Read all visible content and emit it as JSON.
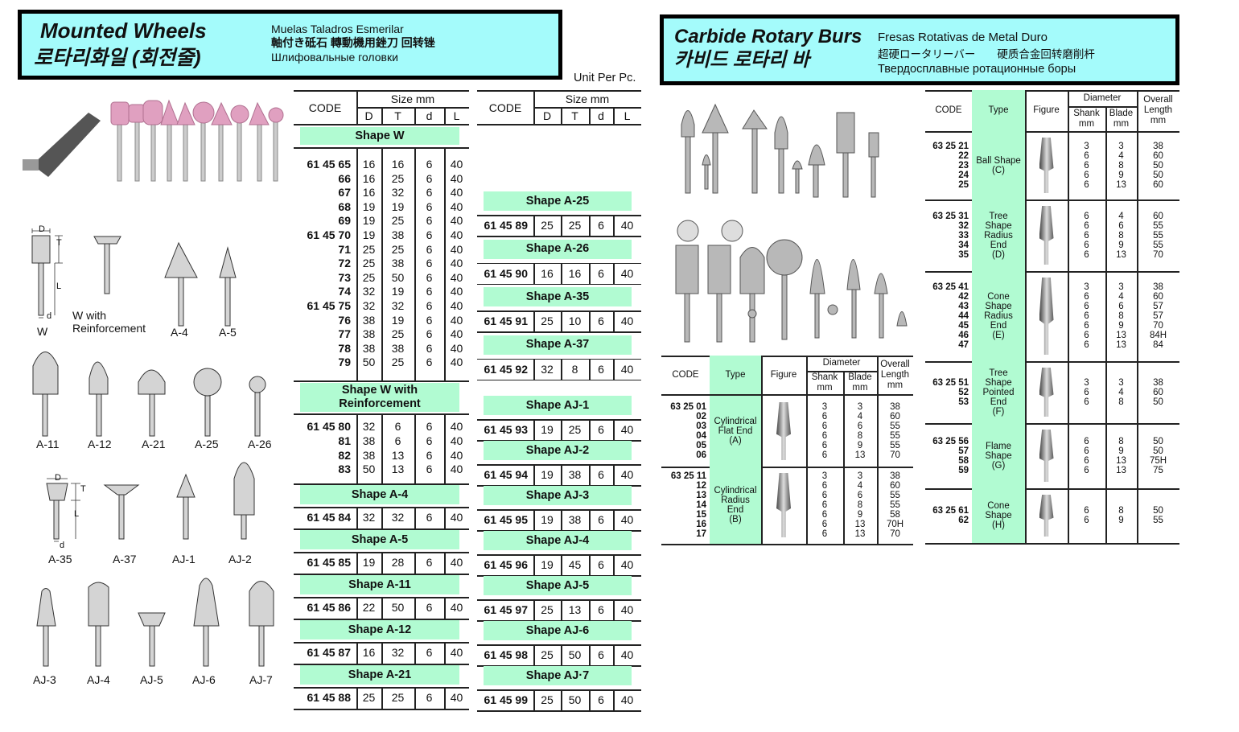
{
  "mounted_wheels": {
    "title": "Mounted Wheels",
    "title_ko": "로타리화일 (회전줄)",
    "subtitles": [
      "Muelas Taladros Esmerilar",
      "軸付き砥石 轉動機用銼刀 回转锉",
      "Шлифовальные головки"
    ],
    "unit": "Unit Per Pc.",
    "header": {
      "code": "CODE",
      "size": "Size mm",
      "cols": [
        "D",
        "T",
        "d",
        "L"
      ]
    },
    "left_sections": [
      {
        "label": "Shape W",
        "rows": [
          [
            "61 45 65",
            "16",
            "16",
            "6",
            "40"
          ],
          [
            "66",
            "16",
            "25",
            "6",
            "40"
          ],
          [
            "67",
            "16",
            "32",
            "6",
            "40"
          ],
          [
            "68",
            "19",
            "19",
            "6",
            "40"
          ],
          [
            "69",
            "19",
            "25",
            "6",
            "40"
          ],
          [
            "61 45 70",
            "19",
            "38",
            "6",
            "40"
          ],
          [
            "71",
            "25",
            "25",
            "6",
            "40"
          ],
          [
            "72",
            "25",
            "38",
            "6",
            "40"
          ],
          [
            "73",
            "25",
            "50",
            "6",
            "40"
          ],
          [
            "74",
            "32",
            "19",
            "6",
            "40"
          ],
          [
            "61 45 75",
            "32",
            "32",
            "6",
            "40"
          ],
          [
            "76",
            "38",
            "19",
            "6",
            "40"
          ],
          [
            "77",
            "38",
            "25",
            "6",
            "40"
          ],
          [
            "78",
            "38",
            "38",
            "6",
            "40"
          ],
          [
            "79",
            "50",
            "25",
            "6",
            "40"
          ]
        ]
      },
      {
        "label": "Shape W with\nReinforcement",
        "rows": [
          [
            "61 45 80",
            "32",
            "6",
            "6",
            "40"
          ],
          [
            "81",
            "38",
            "6",
            "6",
            "40"
          ],
          [
            "82",
            "38",
            "13",
            "6",
            "40"
          ],
          [
            "83",
            "50",
            "13",
            "6",
            "40"
          ]
        ]
      },
      {
        "label": "Shape A-4",
        "rows": [
          [
            "61 45 84",
            "32",
            "32",
            "6",
            "40"
          ]
        ]
      },
      {
        "label": "Shape A-5",
        "rows": [
          [
            "61 45 85",
            "19",
            "28",
            "6",
            "40"
          ]
        ]
      },
      {
        "label": "Shape A-11",
        "rows": [
          [
            "61 45 86",
            "22",
            "50",
            "6",
            "40"
          ]
        ]
      },
      {
        "label": "Shape A-12",
        "rows": [
          [
            "61 45 87",
            "16",
            "32",
            "6",
            "40"
          ]
        ]
      },
      {
        "label": "Shape A-21",
        "rows": [
          [
            "61 45 88",
            "25",
            "25",
            "6",
            "40"
          ]
        ]
      }
    ],
    "right_sections": [
      {
        "label": "Shape A-25",
        "rows": [
          [
            "61 45 89",
            "25",
            "25",
            "6",
            "40"
          ]
        ]
      },
      {
        "label": "Shape A-26",
        "rows": [
          [
            "61 45 90",
            "16",
            "16",
            "6",
            "40"
          ]
        ]
      },
      {
        "label": "Shape A-35",
        "rows": [
          [
            "61 45 91",
            "25",
            "10",
            "6",
            "40"
          ]
        ]
      },
      {
        "label": "Shape A-37",
        "rows": [
          [
            "61 45 92",
            "32",
            "8",
            "6",
            "40"
          ]
        ]
      },
      {
        "label": "Shape AJ-1",
        "rows": [
          [
            "61 45 93",
            "19",
            "25",
            "6",
            "40"
          ]
        ]
      },
      {
        "label": "Shape AJ-2",
        "rows": [
          [
            "61 45 94",
            "19",
            "38",
            "6",
            "40"
          ]
        ]
      },
      {
        "label": "Shape AJ-3",
        "rows": [
          [
            "61 45 95",
            "19",
            "38",
            "6",
            "40"
          ]
        ]
      },
      {
        "label": "Shape AJ-4",
        "rows": [
          [
            "61 45 96",
            "19",
            "45",
            "6",
            "40"
          ]
        ]
      },
      {
        "label": "Shape AJ-5",
        "rows": [
          [
            "61 45 97",
            "25",
            "13",
            "6",
            "40"
          ]
        ]
      },
      {
        "label": "Shape AJ-6",
        "rows": [
          [
            "61 45 98",
            "25",
            "50",
            "6",
            "40"
          ]
        ]
      },
      {
        "label": "Shape AJ·7",
        "rows": [
          [
            "61 45 99",
            "25",
            "50",
            "6",
            "40"
          ]
        ]
      }
    ],
    "figure_labels": [
      "W",
      "W with\nReinforcement",
      "A-4",
      "A-5",
      "A-11",
      "A-12",
      "A-21",
      "A-25",
      "A-26",
      "A-35",
      "A-37",
      "AJ-1",
      "AJ-2",
      "AJ-3",
      "AJ-4",
      "AJ-5",
      "AJ-6",
      "AJ-7"
    ],
    "dimension_labels": [
      "D",
      "T",
      "L",
      "d",
      "D",
      "T",
      "L",
      "d"
    ]
  },
  "carbide_burs": {
    "title": "Carbide Rotary Burs",
    "title_ko": "카비드 로타리 바",
    "subtitles": [
      "Fresas Rotativas de Metal Duro",
      "超硬ロータリーバー　　硬质合金回转磨削杆",
      "Твердосплавные ротационные боры"
    ],
    "header": {
      "code": "CODE",
      "type": "Type",
      "figure": "Figure",
      "diameter": "Diameter",
      "shank": "Shank\nmm",
      "blade": "Blade\nmm",
      "overall": "Overall\nLength\nmm"
    },
    "left_groups": [
      {
        "codes": [
          "63 25 01",
          "02",
          "03",
          "04",
          "05",
          "06"
        ],
        "type": "Cylindrical\nFlat End\n(A)",
        "shank": [
          "3",
          "6",
          "6",
          "6",
          "6",
          "6"
        ],
        "blade": [
          "3",
          "4",
          "6",
          "8",
          "9",
          "13"
        ],
        "length": [
          "38",
          "60",
          "55",
          "55",
          "55",
          "70"
        ]
      },
      {
        "codes": [
          "63 25 11",
          "12",
          "13",
          "14",
          "15",
          "16",
          "17"
        ],
        "type": "Cylindrical\nRadius\nEnd\n(B)",
        "shank": [
          "3",
          "6",
          "6",
          "6",
          "6",
          "6",
          "6"
        ],
        "blade": [
          "3",
          "4",
          "6",
          "8",
          "9",
          "13",
          "13"
        ],
        "length": [
          "38",
          "60",
          "55",
          "55",
          "58",
          "70H",
          "70"
        ]
      }
    ],
    "right_groups": [
      {
        "codes": [
          "63 25 21",
          "22",
          "23",
          "24",
          "25"
        ],
        "type": "Ball Shape\n(C)",
        "shank": [
          "3",
          "6",
          "6",
          "6",
          "6"
        ],
        "blade": [
          "3",
          "4",
          "8",
          "9",
          "13"
        ],
        "length": [
          "38",
          "60",
          "50",
          "50",
          "60"
        ]
      },
      {
        "codes": [
          "63 25 31",
          "32",
          "33",
          "34",
          "35"
        ],
        "type": "Tree\nShape\nRadius\nEnd\n(D)",
        "shank": [
          "6",
          "6",
          "6",
          "6",
          "6"
        ],
        "blade": [
          "4",
          "6",
          "8",
          "9",
          "13"
        ],
        "length": [
          "60",
          "55",
          "55",
          "55",
          "70"
        ]
      },
      {
        "codes": [
          "63 25 41",
          "42",
          "43",
          "44",
          "45",
          "46",
          "47"
        ],
        "type": "Cone\nShape\nRadius\nEnd\n(E)",
        "shank": [
          "3",
          "6",
          "6",
          "6",
          "6",
          "6",
          "6"
        ],
        "blade": [
          "3",
          "4",
          "6",
          "8",
          "9",
          "13",
          "13"
        ],
        "length": [
          "38",
          "60",
          "57",
          "57",
          "70",
          "84H",
          "84"
        ]
      },
      {
        "codes": [
          "63 25 51",
          "52",
          "53"
        ],
        "type": "Tree\nShape\nPointed\nEnd\n(F)",
        "shank": [
          "3",
          "6",
          "6"
        ],
        "blade": [
          "3",
          "4",
          "8"
        ],
        "length": [
          "38",
          "60",
          "50"
        ]
      },
      {
        "codes": [
          "63 25 56",
          "57",
          "58",
          "59"
        ],
        "type": "Flame\nShape\n(G)",
        "shank": [
          "6",
          "6",
          "6",
          "6"
        ],
        "blade": [
          "8",
          "9",
          "13",
          "13"
        ],
        "length": [
          "50",
          "50",
          "75H",
          "75"
        ]
      },
      {
        "codes": [
          "63 25 61",
          "62"
        ],
        "type": "Cone\nShape\n(H)",
        "shank": [
          "6",
          "6"
        ],
        "blade": [
          "8",
          "9"
        ],
        "length": [
          "50",
          "55"
        ]
      }
    ]
  },
  "colors": {
    "header_box": "#a4fbfb",
    "shape_band": "#b1fbd2"
  }
}
